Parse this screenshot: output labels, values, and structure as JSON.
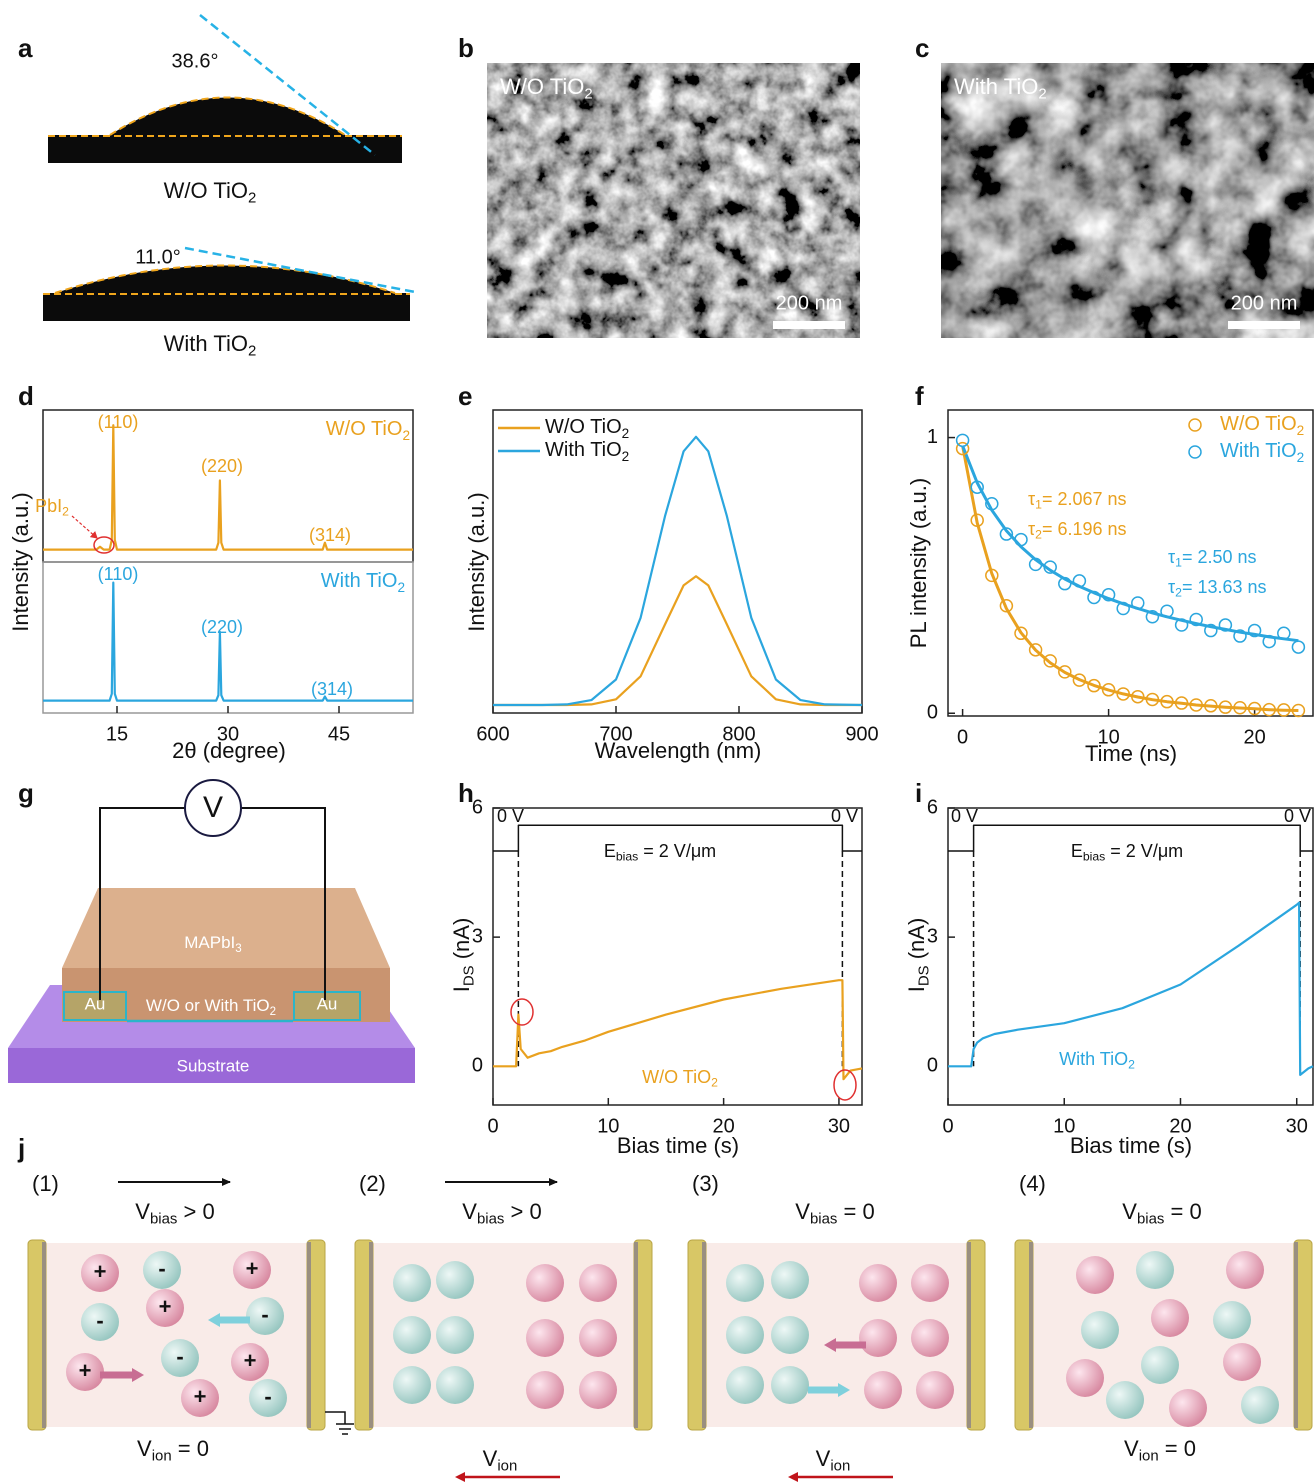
{
  "panel_a": {
    "label": "a",
    "top": {
      "angle": "38.6°",
      "caption": [
        "W/O TiO",
        "2"
      ]
    },
    "bottom": {
      "angle": "11.0°",
      "caption": [
        "With TiO",
        "2"
      ]
    }
  },
  "panel_b": {
    "label": "b",
    "caption": [
      "W/O TiO",
      "2"
    ],
    "scale_bar": "200 nm"
  },
  "panel_c": {
    "label": "c",
    "caption": [
      "With TiO",
      "2"
    ],
    "scale_bar": "200 nm"
  },
  "chart_data": [
    {
      "type": "line",
      "panel": "d",
      "ylabel": "Intensity (a.u.)",
      "xlim": [
        5,
        55
      ],
      "ylim": [
        -6,
        104
      ],
      "legend": "upper right",
      "series": [
        {
          "name": [
            "W/O TiO",
            "2"
          ],
          "color": "#e9a11f",
          "x": [
            5,
            12.2,
            12.7,
            13.2,
            14.0,
            14.3,
            14.5,
            14.7,
            15.0,
            28.4,
            28.7,
            28.9,
            29.1,
            29.4,
            42.8,
            43.1,
            43.4,
            55
          ],
          "values": [
            3,
            3,
            5,
            3,
            3,
            10,
            93,
            10,
            3,
            3,
            8,
            53,
            8,
            3,
            3,
            8,
            3,
            3
          ]
        }
      ],
      "annotations": [
        {
          "text": "(110)",
          "color": "#e9a11f"
        },
        {
          "text": "(220)",
          "color": "#e9a11f"
        },
        {
          "text": "(314)",
          "color": "#e9a11f"
        },
        {
          "text": [
            "PbI",
            "2"
          ],
          "color": "#e9a11f"
        }
      ]
    },
    {
      "type": "line",
      "xlabel": "2θ (degree)",
      "xlim": [
        5,
        55
      ],
      "ylim": [
        -6,
        104
      ],
      "xticks": [
        15,
        30,
        45
      ],
      "legend": "upper right",
      "series": [
        {
          "name": [
            "With TiO",
            "2"
          ],
          "color": "#2ba6de",
          "x": [
            5,
            12.2,
            12.7,
            13.2,
            14.0,
            14.3,
            14.5,
            14.7,
            15.0,
            28.4,
            28.7,
            28.9,
            29.1,
            29.4,
            42.8,
            43.1,
            43.4,
            55
          ],
          "values": [
            3,
            3,
            3,
            3,
            3,
            8,
            89,
            8,
            3,
            3,
            7,
            53,
            7,
            3,
            3,
            6,
            3,
            3
          ]
        }
      ],
      "annotations": [
        {
          "text": "(110)",
          "color": "#2ba6de"
        },
        {
          "text": "(220)",
          "color": "#2ba6de"
        },
        {
          "text": "(314)",
          "color": "#2ba6de"
        }
      ]
    },
    {
      "type": "line",
      "panel": "e",
      "xlabel": "Wavelength (nm)",
      "ylabel": "Intensity (a.u.)",
      "xlim": [
        600,
        900
      ],
      "ylim": [
        -3,
        110
      ],
      "xticks": [
        600,
        700,
        800,
        900
      ],
      "legend": "upper left",
      "series": [
        {
          "name": [
            "W/O TiO",
            "2"
          ],
          "color": "#e9a11f",
          "x": [
            600,
            640,
            660,
            680,
            700,
            720,
            740,
            755,
            765,
            775,
            790,
            810,
            830,
            850,
            870,
            900
          ],
          "values": [
            0,
            0,
            0,
            0.2,
            2.1,
            10.7,
            30.2,
            44.6,
            48,
            44.6,
            30.2,
            10.7,
            2.1,
            0.2,
            0,
            0
          ]
        },
        {
          "name": [
            "With TiO",
            "2"
          ],
          "color": "#2ba6de",
          "x": [
            600,
            640,
            660,
            680,
            700,
            720,
            740,
            755,
            765,
            775,
            790,
            810,
            830,
            850,
            870,
            900
          ],
          "values": [
            0,
            0,
            0.2,
            1.8,
            9.5,
            32.5,
            70.7,
            94.6,
            100,
            94.6,
            70.7,
            32.5,
            9.5,
            1.8,
            0.2,
            0
          ]
        }
      ]
    },
    {
      "type": "scatter",
      "panel": "f",
      "xlabel": "Time (ns)",
      "ylabel": "PL intensity (a.u.)",
      "xlim": [
        -1,
        24
      ],
      "ylim": [
        -0.01,
        1.1
      ],
      "xticks": [
        0,
        10,
        20
      ],
      "yticks": [
        0,
        1
      ],
      "legend": "upper right",
      "series": [
        {
          "name": [
            "W/O TiO",
            "2"
          ],
          "color": "#e9a11f",
          "marker": "circle",
          "x": [
            0,
            1,
            2,
            3,
            4,
            5,
            6,
            7,
            8,
            9,
            10,
            11,
            12,
            13,
            14,
            15,
            16,
            17,
            18,
            19,
            20,
            21,
            22,
            23
          ],
          "values": [
            0.96,
            0.7,
            0.5,
            0.39,
            0.29,
            0.23,
            0.19,
            0.15,
            0.12,
            0.1,
            0.085,
            0.07,
            0.06,
            0.05,
            0.042,
            0.037,
            0.03,
            0.027,
            0.022,
            0.02,
            0.017,
            0.013,
            0.012,
            0.01
          ]
        },
        {
          "name": [
            "With TiO",
            "2"
          ],
          "color": "#2ba6de",
          "marker": "circle",
          "x": [
            0,
            1,
            2,
            3,
            4,
            5,
            6,
            7,
            8,
            9,
            10,
            11,
            12,
            13,
            14,
            15,
            16,
            17,
            18,
            19,
            20,
            21,
            22,
            23
          ],
          "values": [
            0.99,
            0.82,
            0.76,
            0.65,
            0.63,
            0.54,
            0.53,
            0.47,
            0.48,
            0.42,
            0.43,
            0.38,
            0.4,
            0.35,
            0.37,
            0.32,
            0.34,
            0.3,
            0.32,
            0.28,
            0.3,
            0.26,
            0.29,
            0.24
          ]
        }
      ],
      "fits": [
        {
          "color": "#e9a11f",
          "x": [
            0,
            1,
            2,
            3,
            4,
            5,
            6,
            7,
            8,
            9,
            10,
            11,
            12,
            13,
            14,
            15,
            16,
            17,
            18,
            19,
            20,
            21,
            22,
            23
          ],
          "values": [
            0.97,
            0.691,
            0.507,
            0.38,
            0.292,
            0.229,
            0.183,
            0.148,
            0.122,
            0.101,
            0.084,
            0.07,
            0.059,
            0.049,
            0.042,
            0.036,
            0.03,
            0.026,
            0.022,
            0.019,
            0.016,
            0.013,
            0.011,
            0.01
          ]
        },
        {
          "color": "#2ba6de",
          "x": [
            0,
            1,
            2,
            3,
            4,
            5,
            6,
            7,
            8,
            9,
            10,
            11,
            12,
            13,
            14,
            15,
            16,
            17,
            18,
            19,
            20,
            21,
            22,
            23
          ],
          "values": [
            0.97,
            0.836,
            0.737,
            0.662,
            0.604,
            0.557,
            0.519,
            0.487,
            0.46,
            0.437,
            0.416,
            0.397,
            0.38,
            0.364,
            0.35,
            0.337,
            0.325,
            0.314,
            0.304,
            0.294,
            0.286,
            0.277,
            0.27,
            0.263
          ]
        }
      ],
      "annotations": [
        {
          "text": [
            "τ",
            "1",
            "= 2.067 ns"
          ],
          "color": "#e9a11f"
        },
        {
          "text": [
            "τ",
            "2",
            "= 6.196 ns"
          ],
          "color": "#e9a11f"
        },
        {
          "text": [
            "τ",
            "1",
            "= 2.50 ns"
          ],
          "color": "#2ba6de"
        },
        {
          "text": [
            "τ",
            "2",
            "= 13.63 ns"
          ],
          "color": "#2ba6de"
        }
      ]
    },
    {
      "type": "line",
      "panel": "h",
      "xlabel": "Bias time (s)",
      "ylabel": [
        "I",
        "DS",
        " (nA)"
      ],
      "xlim": [
        0,
        32
      ],
      "ylim": [
        -0.9,
        6
      ],
      "xticks": [
        0,
        10,
        20,
        30
      ],
      "yticks": [
        0,
        3,
        6
      ],
      "series": [
        {
          "color": "#e9a11f",
          "x": [
            0,
            2.0,
            2.2,
            2.4,
            3,
            4,
            5,
            6,
            8,
            10,
            15,
            20,
            25,
            30,
            30.3,
            30.4,
            31,
            32
          ],
          "values": [
            0,
            0,
            1.2,
            0.4,
            0.2,
            0.3,
            0.35,
            0.45,
            0.6,
            0.8,
            1.2,
            1.55,
            1.8,
            2.0,
            2.0,
            -0.3,
            -0.1,
            -0.05
          ]
        }
      ],
      "bias": {
        "color": "#111111",
        "x": [
          0,
          2.2,
          2.2,
          30.3,
          30.3,
          32
        ],
        "values": [
          5,
          5,
          5.6,
          5.6,
          5,
          5
        ]
      },
      "annotations": [
        {
          "text": "0 V",
          "color": "#111111"
        },
        {
          "text": "0 V",
          "color": "#111111"
        },
        {
          "text": [
            "E",
            "bias",
            " = 2 V/μm"
          ],
          "color": "#111111"
        },
        {
          "text": [
            "W/O TiO",
            "2"
          ],
          "color": "#e9a11f"
        }
      ]
    },
    {
      "type": "line",
      "panel": "i",
      "xlabel": "Bias time (s)",
      "ylabel": [
        "I",
        "DS",
        " (nA)"
      ],
      "xlim": [
        0,
        31.4
      ],
      "ylim": [
        -0.9,
        6
      ],
      "xticks": [
        0,
        10,
        20,
        30
      ],
      "yticks": [
        0,
        3,
        6
      ],
      "series": [
        {
          "color": "#2ba6de",
          "x": [
            0,
            2.0,
            2.2,
            2.5,
            3,
            4,
            6,
            10,
            15,
            20,
            25,
            30,
            30.2,
            30.3,
            31,
            31.4
          ],
          "values": [
            0,
            0,
            0.4,
            0.55,
            0.65,
            0.75,
            0.85,
            1.0,
            1.35,
            1.9,
            2.8,
            3.75,
            3.8,
            -0.2,
            -0.05,
            0
          ]
        }
      ],
      "bias": {
        "color": "#111111",
        "x": [
          0,
          2.2,
          2.2,
          30.3,
          30.3,
          31.4
        ],
        "values": [
          5,
          5,
          5.6,
          5.6,
          5,
          5
        ]
      },
      "annotations": [
        {
          "text": "0 V",
          "color": "#111111"
        },
        {
          "text": "0 V",
          "color": "#111111"
        },
        {
          "text": [
            "E",
            "bias",
            " = 2 V/μm"
          ],
          "color": "#111111"
        },
        {
          "text": [
            "With TiO",
            "2"
          ],
          "color": "#2ba6de"
        }
      ]
    }
  ],
  "panel_g": {
    "label": "g",
    "meter": "V",
    "film": [
      "MAPbI",
      "3"
    ],
    "electrodes": [
      "Au",
      "Au"
    ],
    "channel": [
      "W/O or With TiO",
      "2"
    ],
    "substrate": "Substrate"
  },
  "panel_j": {
    "label": "j",
    "states": [
      {
        "step": "(1)",
        "bias": [
          "V",
          "bias",
          " > 0"
        ],
        "ion": [
          "V",
          "ion",
          " = 0"
        ],
        "ion_labels": [
          "+",
          "-",
          "+",
          "-",
          "+",
          "-",
          "+",
          "-",
          "+",
          "+",
          "-"
        ]
      },
      {
        "step": "(2)",
        "bias": [
          "V",
          "bias",
          " > 0"
        ],
        "ion": [
          "V",
          "ion"
        ]
      },
      {
        "step": "(3)",
        "bias": [
          "V",
          "bias",
          " = 0"
        ],
        "ion": [
          "V",
          "ion"
        ]
      },
      {
        "step": "(4)",
        "bias": [
          "V",
          "bias",
          " = 0"
        ],
        "ion": [
          "V",
          "ion",
          " = 0"
        ]
      }
    ]
  }
}
